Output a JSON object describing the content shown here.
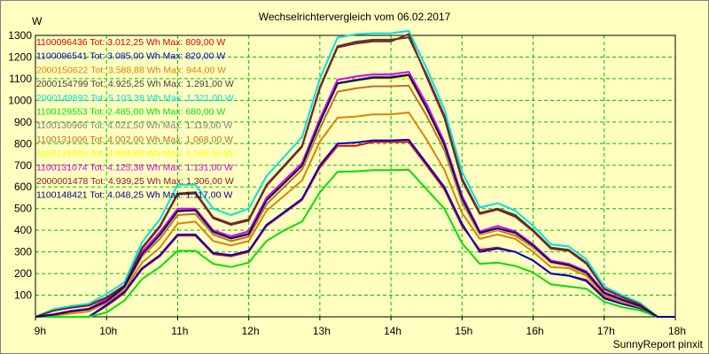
{
  "chart_data": {
    "type": "line",
    "title": "Wechselrichtervergleich vom 06.02.2017",
    "ylabel": "W",
    "xlabel": "",
    "footer": "SunnyReport pinxit",
    "ylim": [
      0,
      1300
    ],
    "y_ticks": [
      100,
      200,
      300,
      400,
      500,
      600,
      700,
      800,
      900,
      1000,
      1100,
      1200,
      1300
    ],
    "x_ticks": [
      "9h",
      "10h",
      "11h",
      "12h",
      "13h",
      "14h",
      "15h",
      "16h",
      "17h",
      "18h"
    ],
    "x": [
      9.0,
      9.25,
      9.5,
      9.75,
      10.0,
      10.25,
      10.5,
      10.75,
      11.0,
      11.25,
      11.5,
      11.75,
      12.0,
      12.25,
      12.5,
      12.75,
      13.0,
      13.25,
      13.5,
      13.75,
      14.0,
      14.25,
      14.5,
      14.75,
      15.0,
      15.25,
      15.5,
      15.75,
      16.0,
      16.25,
      16.5,
      16.75,
      17.0,
      17.25,
      17.5,
      17.75,
      18.0
    ],
    "grid": true,
    "legend_position": "top-left",
    "series": [
      {
        "name": "1100096436 Tot: 3.012,25 Wh Max: 809,00 W",
        "color": "#e00000",
        "values": [
          0,
          0,
          0,
          0,
          50,
          110,
          220,
          280,
          375,
          375,
          290,
          280,
          300,
          420,
          480,
          540,
          690,
          790,
          790,
          808,
          808,
          808,
          700,
          590,
          420,
          310,
          320,
          300,
          260,
          200,
          190,
          170,
          90,
          60,
          40,
          0,
          0
        ]
      },
      {
        "name": "1100096541 Tot: 3.085,00 Wh Max: 820,00 W",
        "color": "#0000c8",
        "values": [
          0,
          0,
          0,
          0,
          55,
          115,
          225,
          285,
          380,
          380,
          295,
          285,
          305,
          425,
          485,
          545,
          700,
          800,
          805,
          815,
          815,
          818,
          710,
          600,
          430,
          300,
          315,
          300,
          260,
          200,
          190,
          165,
          85,
          60,
          40,
          0,
          0
        ]
      },
      {
        "name": "2000150622 Tot: 3.588,88 Wh Max: 944,00 W",
        "color": "#e08000",
        "values": [
          0,
          5,
          15,
          25,
          65,
          125,
          250,
          320,
          430,
          440,
          350,
          330,
          350,
          490,
          560,
          630,
          810,
          920,
          925,
          935,
          935,
          944,
          820,
          680,
          480,
          360,
          380,
          360,
          300,
          230,
          225,
          190,
          100,
          70,
          45,
          0,
          0
        ]
      },
      {
        "name": "2000154799 Tot: 4.925,25 Wh Max: 1.291,00 W",
        "color": "#404040",
        "values": [
          0,
          30,
          45,
          55,
          90,
          145,
          320,
          420,
          570,
          575,
          460,
          430,
          450,
          610,
          700,
          790,
          1060,
          1250,
          1270,
          1280,
          1280,
          1291,
          1120,
          930,
          640,
          480,
          500,
          470,
          400,
          320,
          310,
          250,
          130,
          95,
          60,
          0,
          0
        ]
      },
      {
        "name": "2000149892 Tot: 5.103,38 Wh Max: 1.321,00 W",
        "color": "#00e0e0",
        "values": [
          0,
          35,
          50,
          60,
          105,
          160,
          345,
          450,
          610,
          610,
          500,
          470,
          500,
          650,
          740,
          830,
          1100,
          1290,
          1305,
          1310,
          1310,
          1321,
          1150,
          960,
          670,
          505,
          525,
          490,
          420,
          335,
          325,
          265,
          140,
          100,
          65,
          0,
          0
        ]
      },
      {
        "name": "1100129553 Tot: 2.485,00 Wh Max: 680,00 W",
        "color": "#00e000",
        "values": [
          0,
          0,
          0,
          0,
          20,
          75,
          175,
          230,
          305,
          305,
          245,
          230,
          250,
          350,
          400,
          440,
          575,
          670,
          672,
          678,
          678,
          680,
          590,
          500,
          340,
          245,
          250,
          235,
          205,
          150,
          140,
          130,
          70,
          45,
          30,
          0,
          0
        ]
      },
      {
        "name": "1100130966 Tot: 4.021,50 Wh Max: 1.119,00 W",
        "color": "#808080",
        "values": [
          0,
          10,
          25,
          35,
          75,
          140,
          290,
          380,
          490,
          495,
          395,
          365,
          385,
          540,
          620,
          700,
          900,
          1080,
          1095,
          1110,
          1110,
          1119,
          970,
          800,
          550,
          390,
          410,
          390,
          330,
          255,
          240,
          205,
          110,
          80,
          50,
          0,
          0
        ]
      },
      {
        "name": "1100131006 Tot: 4.002,00 Wh Max: 1.068,00 W",
        "color": "#c07020",
        "values": [
          0,
          10,
          25,
          35,
          70,
          130,
          280,
          360,
          470,
          475,
          380,
          350,
          370,
          520,
          600,
          680,
          870,
          1040,
          1055,
          1065,
          1065,
          1068,
          930,
          770,
          530,
          380,
          400,
          375,
          320,
          250,
          235,
          200,
          105,
          75,
          50,
          0,
          0
        ]
      },
      {
        "name": "1100131025 Tot: 3.994,00 Wh Max: 1.106,00 W",
        "color": "#ffff00",
        "values": [
          0,
          10,
          25,
          35,
          75,
          135,
          285,
          375,
          485,
          490,
          390,
          360,
          380,
          535,
          615,
          695,
          895,
          1075,
          1090,
          1100,
          1100,
          1106,
          960,
          790,
          545,
          385,
          405,
          385,
          325,
          252,
          238,
          203,
          108,
          78,
          50,
          0,
          0
        ]
      },
      {
        "name": "1100131074 Tot: 4.125,38 Wh Max: 1.131,00 W",
        "color": "#e000e0",
        "values": [
          0,
          12,
          28,
          38,
          80,
          145,
          300,
          390,
          500,
          500,
          400,
          372,
          395,
          550,
          630,
          710,
          915,
          1095,
          1110,
          1120,
          1120,
          1131,
          985,
          810,
          560,
          395,
          420,
          395,
          335,
          260,
          245,
          210,
          115,
          82,
          52,
          0,
          0
        ]
      },
      {
        "name": "2000001478 Tot: 4.939,25 Wh Max: 1.306,00 W",
        "color": "#802020",
        "values": [
          0,
          28,
          42,
          52,
          88,
          142,
          315,
          415,
          565,
          570,
          455,
          425,
          445,
          605,
          695,
          785,
          1055,
          1245,
          1262,
          1272,
          1272,
          1306,
          1110,
          920,
          630,
          475,
          495,
          462,
          395,
          315,
          305,
          245,
          128,
          92,
          58,
          0,
          0
        ]
      },
      {
        "name": "1100148421 Tot: 4.048,25 Wh Max: 1.117,00 W",
        "color": "#000080",
        "values": [
          0,
          10,
          25,
          35,
          72,
          138,
          288,
          378,
          488,
          492,
          392,
          362,
          382,
          538,
          618,
          698,
          898,
          1078,
          1092,
          1105,
          1105,
          1117,
          965,
          795,
          548,
          388,
          408,
          388,
          328,
          254,
          239,
          204,
          109,
          79,
          50,
          0,
          0
        ]
      }
    ]
  }
}
